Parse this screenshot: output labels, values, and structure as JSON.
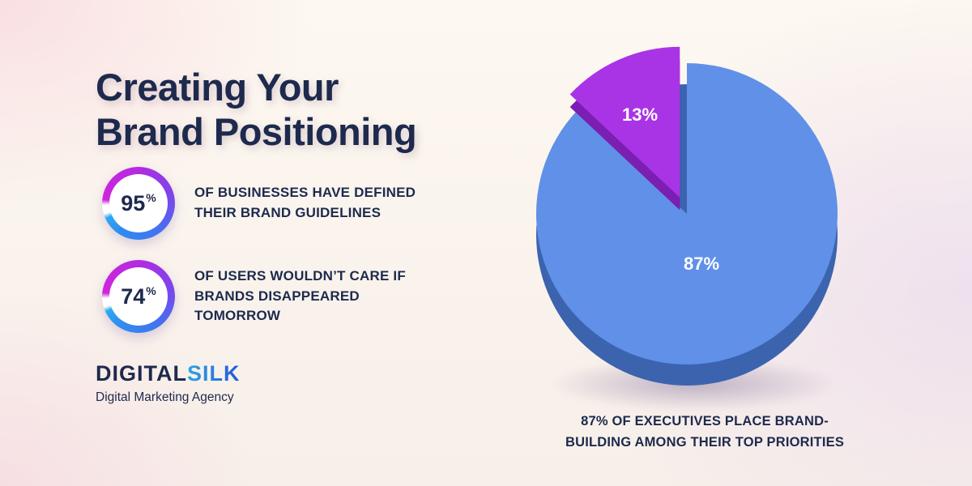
{
  "title": {
    "lines": [
      "Creating Your",
      "Brand Positioning"
    ]
  },
  "stats": [
    {
      "value": "95",
      "unit": "%",
      "label": "OF BUSINESSES HAVE DEFINED THEIR BRAND GUIDELINES"
    },
    {
      "value": "74",
      "unit": "%",
      "label": "OF USERS WOULDN’T CARE IF BRANDS DISAPPEARED TOMORROW"
    }
  ],
  "logo": {
    "word1": "DIGITAL",
    "word2": "SILK",
    "tagline": "Digital Marketing Agency"
  },
  "chart_data": {
    "type": "pie",
    "labels": [
      "87%",
      "13%"
    ],
    "values": [
      87,
      13
    ],
    "exploded_index": 1,
    "start_angle_deg": 0,
    "legend": "none",
    "colors": {
      "slice_blue": "#6090e8",
      "slice_blue_side": "#3c63ae",
      "slice_purple": "#a934e6",
      "slice_purple_side": "#7b1fb2"
    },
    "caption_lines": [
      "87% OF EXECUTIVES PLACE BRAND-",
      "BUILDING AMONG THEIR TOP PRIORITIES"
    ]
  },
  "theme": {
    "navy": "#1d2a4d",
    "ring_purple": "#b32be0",
    "ring_blue": "#2f86f0"
  }
}
